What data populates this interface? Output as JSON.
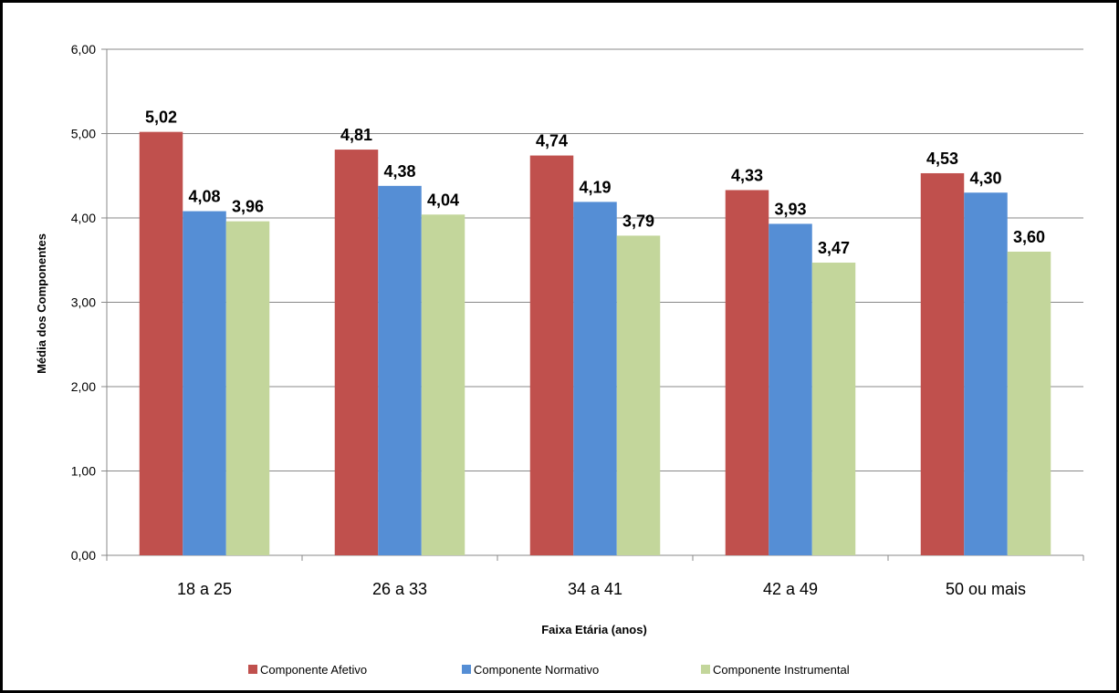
{
  "chart_data": {
    "type": "bar",
    "title": "",
    "xlabel": "Faixa Etária (anos)",
    "ylabel": "Média dos Componentes",
    "ylim": [
      0,
      6
    ],
    "yticks": [
      "0,00",
      "1,00",
      "2,00",
      "3,00",
      "4,00",
      "5,00",
      "6,00"
    ],
    "grid": true,
    "legend_position": "bottom",
    "categories": [
      "18 a 25",
      "26 a 33",
      "34 a 41",
      "42 a 49",
      "50 ou mais"
    ],
    "series": [
      {
        "name": "Componente Afetivo",
        "color": "#C0504D",
        "values": [
          5.02,
          4.81,
          4.74,
          4.33,
          4.53
        ],
        "labels": [
          "5,02",
          "4,81",
          "4,74",
          "4,33",
          "4,53"
        ]
      },
      {
        "name": "Componente Normativo",
        "color": "#558ED5",
        "values": [
          4.08,
          4.38,
          4.19,
          3.93,
          4.3
        ],
        "labels": [
          "4,08",
          "4,38",
          "4,19",
          "3,93",
          "4,30"
        ]
      },
      {
        "name": "Componente Instrumental",
        "color": "#C3D69B",
        "values": [
          3.96,
          4.04,
          3.79,
          3.47,
          3.6
        ],
        "labels": [
          "3,96",
          "4,04",
          "3,79",
          "3,47",
          "3,60"
        ]
      }
    ]
  }
}
